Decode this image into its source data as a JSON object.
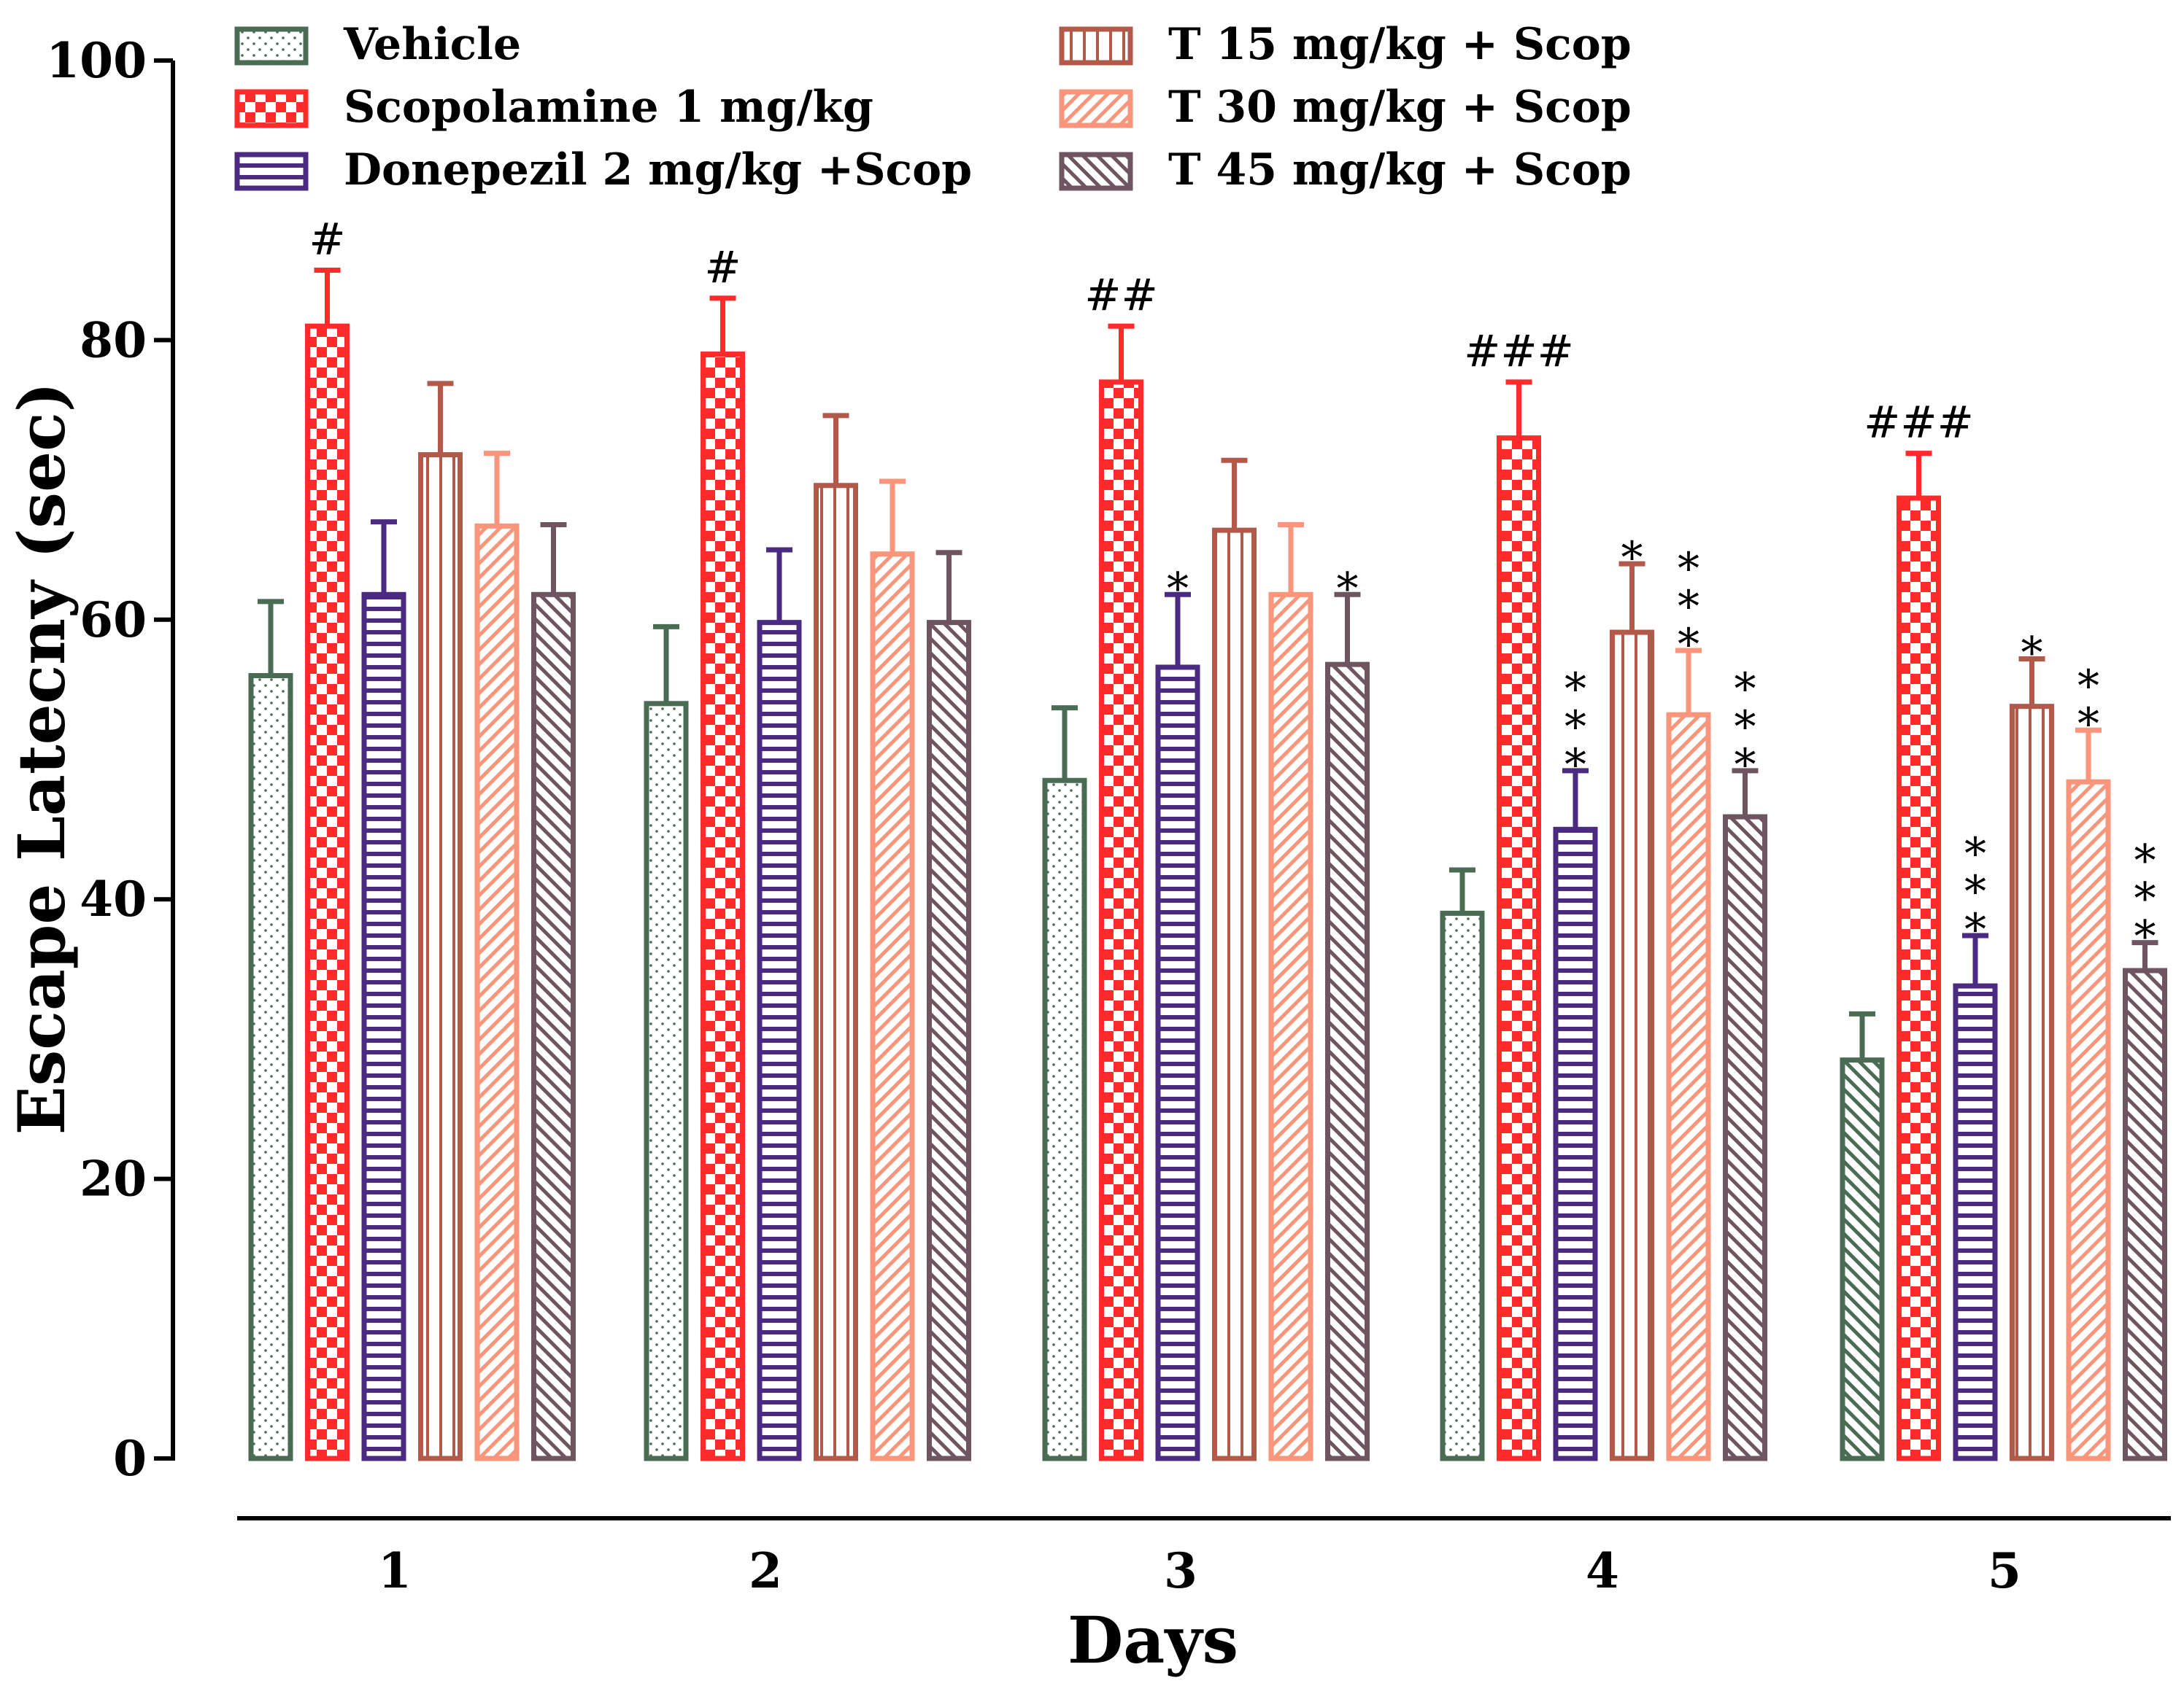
{
  "chart_data": {
    "type": "bar",
    "title": "",
    "xlabel": "Days",
    "ylabel": "Escape Latecny (sec)",
    "ylim": [
      0,
      100
    ],
    "yticks": [
      0,
      20,
      40,
      60,
      80,
      100
    ],
    "grid": false,
    "legend_position": "top",
    "categories": [
      "1",
      "2",
      "3",
      "4",
      "5"
    ],
    "series": [
      {
        "name": "Vehicle",
        "pattern": "dots",
        "color": "#4a6b54",
        "values": [
          56,
          54,
          48.5,
          39,
          28.5
        ],
        "errors": [
          5.3,
          5.5,
          5.2,
          3.1,
          3.3
        ]
      },
      {
        "name": "Scopolamine 1 mg/kg",
        "pattern": "checker",
        "color": "#ff2a2a",
        "values": [
          81,
          79,
          77,
          73,
          68.7
        ],
        "errors": [
          4,
          4,
          4,
          4,
          3.2
        ]
      },
      {
        "name": "Donepezil 2 mg/kg +Scop",
        "pattern": "hlines",
        "color": "#4b2a82",
        "values": [
          61.8,
          59.8,
          56.6,
          45,
          33.8
        ],
        "errors": [
          5.2,
          5.2,
          5.2,
          4.2,
          3.6
        ]
      },
      {
        "name": "T 15 mg/kg + Scop",
        "pattern": "vlines",
        "color": "#b3594a",
        "values": [
          71.8,
          69.6,
          66.4,
          59.1,
          53.8
        ],
        "errors": [
          5.1,
          5,
          5,
          4.9,
          3.4
        ]
      },
      {
        "name": "T 30 mg/kg + Scop",
        "pattern": "diag-fwd",
        "color": "#f8957a",
        "values": [
          66.7,
          64.7,
          61.8,
          53.2,
          48.4
        ],
        "errors": [
          5.2,
          5.2,
          5,
          4.6,
          3.7
        ]
      },
      {
        "name": "T 45 mg/kg + Scop",
        "pattern": "diag-back",
        "color": "#6f5560",
        "values": [
          61.8,
          59.8,
          56.8,
          45.9,
          34.9
        ],
        "errors": [
          5,
          5,
          5,
          3.3,
          2
        ]
      }
    ],
    "annotations": [
      {
        "category": 0,
        "series": 1,
        "text": "#"
      },
      {
        "category": 1,
        "series": 1,
        "text": "#"
      },
      {
        "category": 2,
        "series": 1,
        "text": "##"
      },
      {
        "category": 3,
        "series": 1,
        "text": "###"
      },
      {
        "category": 4,
        "series": 1,
        "text": "###"
      },
      {
        "category": 2,
        "series": 2,
        "text": "*"
      },
      {
        "category": 2,
        "series": 5,
        "text": "*"
      },
      {
        "category": 3,
        "series": 2,
        "text": "***"
      },
      {
        "category": 3,
        "series": 3,
        "text": "*"
      },
      {
        "category": 3,
        "series": 4,
        "text": "***"
      },
      {
        "category": 3,
        "series": 5,
        "text": "***"
      },
      {
        "category": 4,
        "series": 2,
        "text": "***"
      },
      {
        "category": 4,
        "series": 3,
        "text": "*"
      },
      {
        "category": 4,
        "series": 4,
        "text": "**"
      },
      {
        "category": 4,
        "series": 5,
        "text": "***"
      }
    ],
    "overrides": [
      {
        "category": 4,
        "series": 0,
        "pattern": "diag-back"
      }
    ]
  }
}
